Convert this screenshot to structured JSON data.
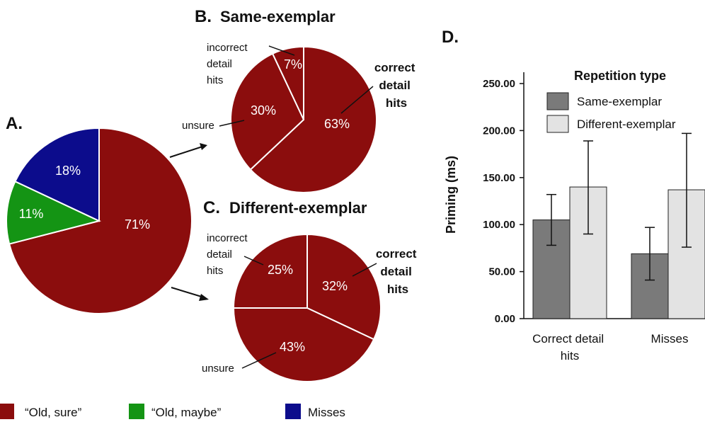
{
  "panels": {
    "a": "A.",
    "b_letter": "B.",
    "b_title": "Same-exemplar",
    "c_letter": "C.",
    "c_title": "Different-exemplar",
    "d": "D."
  },
  "colors": {
    "old_sure": "#8b0d0d",
    "old_maybe": "#149414",
    "misses": "#0c0c8c",
    "same_bar": "#7a7a7a",
    "diff_bar": "#e3e3e3"
  },
  "chart_data": [
    {
      "id": "A",
      "type": "pie",
      "slices": [
        {
          "label": "“Old, sure”",
          "value": 71,
          "text": "71%"
        },
        {
          "label": "“Old, maybe”",
          "value": 11,
          "text": "11%"
        },
        {
          "label": "Misses",
          "value": 18,
          "text": "18%"
        }
      ]
    },
    {
      "id": "B",
      "type": "pie",
      "title": "Same-exemplar",
      "slices": [
        {
          "label": "correct detail hits",
          "value": 63,
          "text": "63%"
        },
        {
          "label": "unsure",
          "value": 30,
          "text": "30%"
        },
        {
          "label": "incorrect detail hits",
          "value": 7,
          "text": "7%"
        }
      ]
    },
    {
      "id": "C",
      "type": "pie",
      "title": "Different-exemplar",
      "slices": [
        {
          "label": "correct detail hits",
          "value": 32,
          "text": "32%"
        },
        {
          "label": "unsure",
          "value": 43,
          "text": "43%"
        },
        {
          "label": "incorrect detail hits",
          "value": 25,
          "text": "25%"
        }
      ]
    },
    {
      "id": "D",
      "type": "bar",
      "categories": [
        "Correct detail hits",
        "Misses"
      ],
      "ylabel": "Priming (ms)",
      "ylim": [
        0,
        250
      ],
      "yticks": [
        "0.00",
        "50.00",
        "100.00",
        "150.00",
        "200.00",
        "250.00"
      ],
      "legend_title": "Repetition type",
      "legend_position": "top-right",
      "series": [
        {
          "name": "Same-exemplar",
          "values": [
            105,
            69
          ],
          "err_low": [
            78,
            41
          ],
          "err_high": [
            132,
            97
          ]
        },
        {
          "name": "Different-exemplar",
          "values": [
            140,
            137
          ],
          "err_low": [
            90,
            76
          ],
          "err_high": [
            189,
            197
          ]
        }
      ]
    }
  ],
  "callouts": {
    "b_incorrect": [
      "incorrect",
      "detail",
      "hits"
    ],
    "b_unsure": "unsure",
    "b_correct": [
      "correct",
      "detail",
      "hits"
    ],
    "c_incorrect": [
      "incorrect",
      "detail",
      "hits"
    ],
    "c_unsure": "unsure",
    "c_correct": [
      "correct",
      "detail",
      "hits"
    ]
  },
  "x_labels": {
    "cat1": [
      "Correct detail",
      "hits"
    ],
    "cat2": "Misses"
  },
  "key": [
    "“Old, sure”",
    "“Old, maybe”",
    "Misses"
  ]
}
